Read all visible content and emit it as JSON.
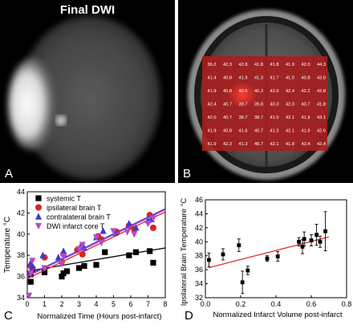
{
  "panel_a": {
    "title": "Final DWI",
    "label": "A"
  },
  "panel_b": {
    "label": "B",
    "temperature_grid": [
      [
        "36.2",
        "42.3",
        "42.8",
        "41.8",
        "41.8",
        "41.9",
        "42.0",
        "44.3"
      ],
      [
        "41.4",
        "40.8",
        "41.9",
        "41.3",
        "41.7",
        "41.0",
        "40.8",
        "43.8"
      ],
      [
        "41.9",
        "40.8",
        "40.5",
        "40.3",
        "42.0",
        "42.4",
        "42.2",
        "42.8"
      ],
      [
        "42.4",
        "40.7",
        "39.7",
        "39.8",
        "40.3",
        "42.0",
        "40.7",
        "41.8"
      ],
      [
        "42.0",
        "40.7",
        "38.7",
        "38.7",
        "41.0",
        "42.1",
        "41.9",
        "43.1"
      ],
      [
        "41.9",
        "40.8",
        "41.6",
        "40.7",
        "41.3",
        "42.1",
        "41.9",
        "42.6"
      ],
      [
        "41.9",
        "42.3",
        "41.3",
        "40.7",
        "42.1",
        "41.8",
        "43.4",
        "42.4"
      ]
    ]
  },
  "panel_c": {
    "label": "C",
    "colors": {
      "systemic": "#000000",
      "ipsilateral": "#e02020",
      "contralateral": "#3a3ad8",
      "core": "#b24ec4"
    },
    "chart_data": {
      "type": "scatter",
      "xlabel": "Normalized Time (Hours post-infarct)",
      "ylabel": "Temperature °C",
      "xlim": [
        0,
        8
      ],
      "ylim": [
        34,
        44
      ],
      "xticks": [
        0,
        1,
        2,
        3,
        4,
        5,
        6,
        7,
        8
      ],
      "yticks": [
        34,
        36,
        38,
        40,
        42,
        44
      ],
      "legend_position": "top-left",
      "series": [
        {
          "name": "systemic T",
          "marker": "square",
          "points": [
            [
              0.2,
              36.2
            ],
            [
              0.2,
              35.5
            ],
            [
              0.3,
              36.6
            ],
            [
              1.0,
              36.4
            ],
            [
              2.0,
              36.0
            ],
            [
              2.1,
              36.3
            ],
            [
              2.3,
              36.5
            ],
            [
              3.0,
              36.8
            ],
            [
              3.3,
              37.0
            ],
            [
              4.0,
              37.1
            ],
            [
              4.5,
              38.3
            ],
            [
              5.9,
              38.0
            ],
            [
              6.3,
              38.3
            ],
            [
              7.1,
              38.4
            ],
            [
              7.3,
              37.3
            ]
          ],
          "fit": [
            [
              0,
              36.5
            ],
            [
              8,
              38.7
            ]
          ]
        },
        {
          "name": "ipsilateral brain T",
          "marker": "circle",
          "points": [
            [
              0.2,
              37.0
            ],
            [
              0.3,
              36.8
            ],
            [
              1.0,
              37.8
            ],
            [
              2.0,
              37.4
            ],
            [
              2.1,
              38.1
            ],
            [
              2.9,
              38.5
            ],
            [
              3.2,
              38.1
            ],
            [
              4.1,
              39.8
            ],
            [
              4.3,
              39.5
            ],
            [
              5.2,
              40.2
            ],
            [
              5.9,
              40.8
            ],
            [
              6.2,
              40.5
            ],
            [
              7.1,
              41.8
            ],
            [
              7.3,
              40.6
            ]
          ],
          "fit": [
            [
              0,
              35.8
            ],
            [
              8,
              42.1
            ]
          ]
        },
        {
          "name": "contralateral brain T",
          "marker": "triangle",
          "points": [
            [
              0.2,
              37.3
            ],
            [
              0.2,
              36.5
            ],
            [
              0.3,
              37.0
            ],
            [
              0.9,
              38.0
            ],
            [
              1.8,
              37.8
            ],
            [
              2.1,
              38.4
            ],
            [
              3.1,
              38.9
            ],
            [
              3.3,
              38.7
            ],
            [
              4.0,
              39.7
            ],
            [
              4.4,
              40.3
            ],
            [
              5.1,
              40.1
            ],
            [
              5.9,
              41.0
            ],
            [
              6.3,
              40.6
            ],
            [
              7.0,
              41.3
            ],
            [
              7.2,
              41.4
            ]
          ],
          "fit": [
            [
              0,
              36.1
            ],
            [
              8,
              42.4
            ]
          ]
        },
        {
          "name": "DWI infarct core T",
          "marker": "triangle-down",
          "points": [
            [
              0.1,
              34.2
            ],
            [
              0.2,
              36.3
            ],
            [
              0.3,
              37.5
            ],
            [
              1.0,
              36.8
            ],
            [
              2.0,
              37.2
            ],
            [
              2.1,
              37.9
            ],
            [
              3.0,
              38.6
            ],
            [
              3.2,
              39.0
            ],
            [
              4.0,
              39.7
            ],
            [
              4.3,
              39.2
            ],
            [
              5.0,
              40.3
            ],
            [
              5.8,
              40.2
            ],
            [
              6.2,
              40.0
            ],
            [
              7.0,
              41.0
            ],
            [
              7.3,
              41.5
            ]
          ],
          "fit": [
            [
              0,
              36.0
            ],
            [
              8,
              42.3
            ]
          ]
        }
      ]
    }
  },
  "panel_d": {
    "label": "D",
    "colors": {
      "points": "#000000",
      "fit": "#e02020"
    },
    "chart_data": {
      "type": "scatter",
      "xlabel": "Normalized Infarct Volume post-infarct",
      "ylabel": "Ipsilateral Brain Temperature °C",
      "xlim": [
        0.0,
        0.8
      ],
      "ylim": [
        32,
        46
      ],
      "xticks": [
        "0.0",
        "0.2",
        "0.4",
        "0.6",
        "0.8"
      ],
      "yticks": [
        32,
        34,
        36,
        38,
        40,
        42,
        44,
        46
      ],
      "points": [
        {
          "x": 0.02,
          "y": 37.4,
          "err": 1.0
        },
        {
          "x": 0.1,
          "y": 38.2,
          "err": 0.8
        },
        {
          "x": 0.19,
          "y": 39.5,
          "err": 0.9
        },
        {
          "x": 0.21,
          "y": 34.2,
          "err": 1.6
        },
        {
          "x": 0.24,
          "y": 35.9,
          "err": 0.6
        },
        {
          "x": 0.35,
          "y": 37.6,
          "err": 0.4
        },
        {
          "x": 0.41,
          "y": 37.9,
          "err": 0.7
        },
        {
          "x": 0.53,
          "y": 40.0,
          "err": 0.6
        },
        {
          "x": 0.55,
          "y": 39.3,
          "err": 1.0
        },
        {
          "x": 0.56,
          "y": 40.4,
          "err": 1.0
        },
        {
          "x": 0.6,
          "y": 40.2,
          "err": 0.8
        },
        {
          "x": 0.63,
          "y": 41.0,
          "err": 1.5
        },
        {
          "x": 0.65,
          "y": 40.0,
          "err": 0.8
        },
        {
          "x": 0.68,
          "y": 41.5,
          "err": 2.8
        }
      ],
      "fit": [
        [
          0.02,
          36.3
        ],
        [
          0.7,
          40.7
        ]
      ]
    }
  }
}
